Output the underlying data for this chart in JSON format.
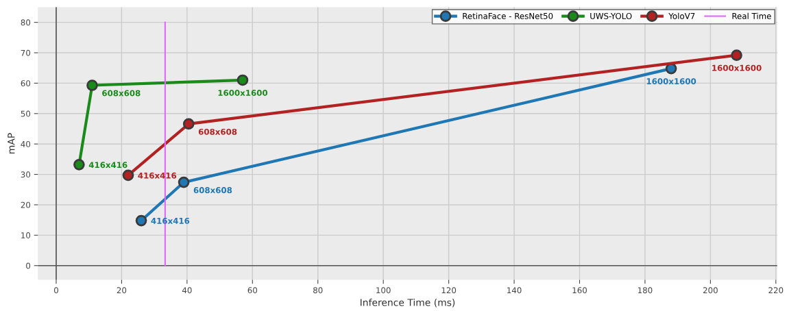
{
  "chart_data": {
    "type": "line",
    "xlabel": "Inference Time (ms)",
    "ylabel": "mAP",
    "series": [
      {
        "name": "RetinaFace - ResNet50",
        "color": "#1f77b4",
        "x": [
          26,
          39,
          188
        ],
        "values": [
          14.8,
          27.4,
          64.8
        ],
        "marker": "circle"
      },
      {
        "name": "UWS-YOLO",
        "color": "#1a8a1a",
        "x": [
          7,
          11,
          57
        ],
        "values": [
          33.2,
          59.3,
          61.0
        ],
        "marker": "circle"
      },
      {
        "name": "YoloV7",
        "color": "#b22222",
        "x": [
          22,
          40.5,
          208
        ],
        "values": [
          29.7,
          46.6,
          69.2
        ],
        "marker": "circle"
      },
      {
        "name": "Real Time",
        "color": "#e066ff",
        "x": [
          33.3,
          33.3
        ],
        "values": [
          0,
          80
        ],
        "marker": "none"
      }
    ],
    "annotations": [
      {
        "text": "416x416",
        "x": 26,
        "y": 14.8
      },
      {
        "text": "608x608",
        "x": 39,
        "y": 27.4
      },
      {
        "text": "1600x1600",
        "x": 188,
        "y": 64.8
      },
      {
        "text": "416x416",
        "x": 7,
        "y": 33.2
      },
      {
        "text": "608x608",
        "x": 11,
        "y": 59.3
      },
      {
        "text": "1600x1600",
        "x": 57,
        "y": 61.0
      },
      {
        "text": "416x416",
        "x": 22,
        "y": 29.7
      },
      {
        "text": "608x608",
        "x": 40.5,
        "y": 46.6
      },
      {
        "text": "1600x1600",
        "x": 208,
        "y": 69.2
      }
    ],
    "xlim": [
      -5.6,
      220.4
    ],
    "ylim": [
      -4.7,
      85
    ],
    "xticks": [
      0,
      20,
      40,
      60,
      80,
      100,
      120,
      140,
      160,
      180,
      200,
      220
    ],
    "yticks": [
      0,
      10,
      20,
      30,
      40,
      50,
      60,
      70,
      80
    ],
    "grid": true,
    "legend": "top right"
  }
}
